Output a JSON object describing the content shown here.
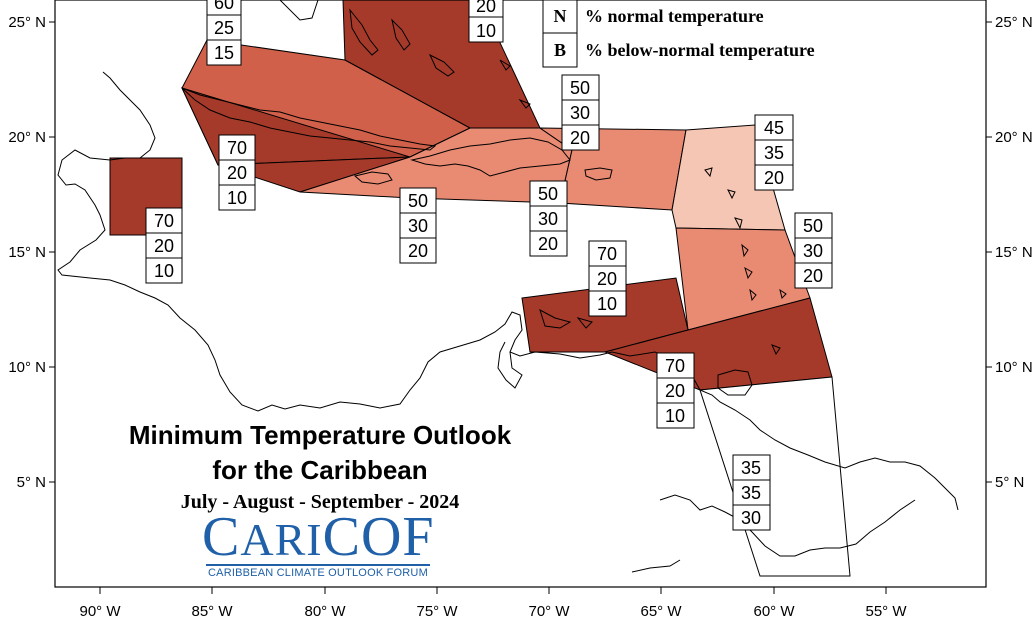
{
  "title_line1": "Minimum Temperature Outlook",
  "title_line2": "for the Caribbean",
  "subtitle": "July - August - September - 2024",
  "logo": {
    "name": "CariCOF",
    "tagline": "CARIBBEAN CLIMATE OUTLOOK FORUM"
  },
  "legend": [
    {
      "key": "N",
      "label": "% normal temperature"
    },
    {
      "key": "B",
      "label": "% below-normal temperature"
    }
  ],
  "lat_labels": [
    "25° N",
    "20° N",
    "15° N",
    "10° N",
    "5° N"
  ],
  "lon_labels": [
    "90° W",
    "85° W",
    "80° W",
    "75° W",
    "70° W",
    "65° W",
    "60° W",
    "55° W"
  ],
  "colors": {
    "above_70": "#a63a2a",
    "above_60": "#d0604a",
    "above_50": "#e98a73",
    "above_45": "#f6c6b4",
    "climatology": "#ffffff",
    "coast": "#000000"
  },
  "probability_boxes": [
    {
      "region": "bahamas-west",
      "values": [
        "60",
        "25",
        "15"
      ]
    },
    {
      "region": "bahamas-east",
      "values": [
        "20",
        "10"
      ]
    },
    {
      "region": "cuba-west",
      "values": [
        "70",
        "20",
        "10"
      ]
    },
    {
      "region": "belize",
      "values": [
        "70",
        "20",
        "10"
      ]
    },
    {
      "region": "jamaica",
      "values": [
        "50",
        "30",
        "20"
      ]
    },
    {
      "region": "hispaniola",
      "values": [
        "50",
        "30",
        "20"
      ]
    },
    {
      "region": "turks-caicos",
      "values": [
        "50",
        "30",
        "20"
      ]
    },
    {
      "region": "leeward-islands",
      "values": [
        "45",
        "35",
        "20"
      ]
    },
    {
      "region": "windward-islands",
      "values": [
        "50",
        "30",
        "20"
      ]
    },
    {
      "region": "abc-islands",
      "values": [
        "70",
        "20",
        "10"
      ]
    },
    {
      "region": "trinidad",
      "values": [
        "70",
        "20",
        "10"
      ]
    },
    {
      "region": "guianas",
      "values": [
        "35",
        "35",
        "30"
      ]
    }
  ]
}
